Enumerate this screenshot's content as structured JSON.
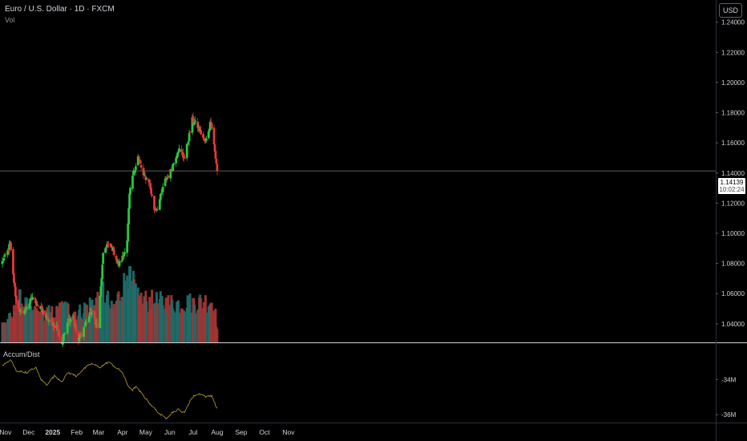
{
  "header": {
    "title": "Euro / U.S. Dollar · 1D · FXCM",
    "volume_label": "Vol"
  },
  "indicator": {
    "label": "Accum/Dist"
  },
  "currency_button": {
    "label": "USD"
  },
  "last_price": {
    "value": "1.14139",
    "countdown": "10:02:24"
  },
  "colors": {
    "up": "#26c940",
    "down": "#e23a3a",
    "vol_up": "#1f6b68",
    "vol_down": "#a23535",
    "ad_line": "#b9a22c",
    "grid_line": "#7a7d85"
  },
  "chart_data": [
    {
      "type": "candlestick",
      "title": "Euro / U.S. Dollar · 1D · FXCM",
      "x_ticks": [
        "Nov",
        "Dec",
        "2025",
        "Feb",
        "Mar",
        "Apr",
        "May",
        "Jun",
        "Jul",
        "Aug",
        "Sep",
        "Oct",
        "Nov"
      ],
      "y_ticks": [
        "1.24000",
        "1.22000",
        "1.20000",
        "1.18000",
        "1.16000",
        "1.14000",
        "1.12000",
        "1.10000",
        "1.08000",
        "1.06000",
        "1.04000"
      ],
      "y_tick_values": [
        1.24,
        1.22,
        1.2,
        1.18,
        1.16,
        1.14,
        1.12,
        1.1,
        1.08,
        1.06,
        1.04
      ],
      "ylim": [
        1.0277,
        1.2547
      ],
      "anchors": [
        [
          "2024-10-28",
          1.081
        ],
        [
          "2024-11-04",
          1.088
        ],
        [
          "2024-11-07",
          1.093
        ],
        [
          "2024-11-11",
          1.072
        ],
        [
          "2024-11-15",
          1.055
        ],
        [
          "2024-11-22",
          1.046
        ],
        [
          "2024-12-02",
          1.054
        ],
        [
          "2024-12-06",
          1.058
        ],
        [
          "2024-12-16",
          1.05
        ],
        [
          "2024-12-27",
          1.042
        ],
        [
          "2025-01-06",
          1.038
        ],
        [
          "2025-01-13",
          1.027
        ],
        [
          "2025-01-20",
          1.042
        ],
        [
          "2025-01-27",
          1.045
        ],
        [
          "2025-02-03",
          1.028
        ],
        [
          "2025-02-12",
          1.04
        ],
        [
          "2025-02-20",
          1.048
        ],
        [
          "2025-02-28",
          1.038
        ],
        [
          "2025-03-04",
          1.064
        ],
        [
          "2025-03-07",
          1.085
        ],
        [
          "2025-03-11",
          1.092
        ],
        [
          "2025-03-19",
          1.09
        ],
        [
          "2025-03-27",
          1.079
        ],
        [
          "2025-04-02",
          1.085
        ],
        [
          "2025-04-07",
          1.096
        ],
        [
          "2025-04-10",
          1.125
        ],
        [
          "2025-04-14",
          1.138
        ],
        [
          "2025-04-21",
          1.151
        ],
        [
          "2025-04-28",
          1.138
        ],
        [
          "2025-05-05",
          1.135
        ],
        [
          "2025-05-12",
          1.116
        ],
        [
          "2025-05-16",
          1.117
        ],
        [
          "2025-05-26",
          1.135
        ],
        [
          "2025-06-02",
          1.141
        ],
        [
          "2025-06-12",
          1.156
        ],
        [
          "2025-06-20",
          1.15
        ],
        [
          "2025-06-30",
          1.175
        ],
        [
          "2025-07-07",
          1.171
        ],
        [
          "2025-07-17",
          1.16
        ],
        [
          "2025-07-24",
          1.175
        ],
        [
          "2025-07-28",
          1.159
        ],
        [
          "2025-08-01",
          1.141
        ]
      ],
      "last_value": 1.14139
    },
    {
      "type": "bar",
      "name": "Vol",
      "anchors": [
        [
          "2024-10-28",
          0.25
        ],
        [
          "2024-11-11",
          0.35
        ],
        [
          "2024-11-15",
          0.6
        ],
        [
          "2024-11-22",
          0.55
        ],
        [
          "2024-12-06",
          0.4
        ],
        [
          "2025-01-06",
          0.4
        ],
        [
          "2025-01-13",
          0.48
        ],
        [
          "2025-02-03",
          0.4
        ],
        [
          "2025-03-04",
          0.62
        ],
        [
          "2025-03-07",
          0.7
        ],
        [
          "2025-03-19",
          0.42
        ],
        [
          "2025-04-03",
          0.78
        ],
        [
          "2025-04-07",
          1.0
        ],
        [
          "2025-04-11",
          0.88
        ],
        [
          "2025-04-21",
          0.58
        ],
        [
          "2025-05-12",
          0.55
        ],
        [
          "2025-06-12",
          0.52
        ],
        [
          "2025-07-28",
          0.56
        ],
        [
          "2025-08-01",
          0.18
        ]
      ]
    },
    {
      "type": "line",
      "name": "Accum/Dist",
      "y_ticks": [
        "-34M",
        "-36M"
      ],
      "y_tick_values": [
        -34,
        -36
      ],
      "ylim": [
        -36.45,
        -31.93
      ],
      "anchors": [
        [
          "2024-10-28",
          -33.2
        ],
        [
          "2024-11-04",
          -33.0
        ],
        [
          "2024-11-08",
          -32.9
        ],
        [
          "2024-11-15",
          -33.5
        ],
        [
          "2024-11-29",
          -33.6
        ],
        [
          "2024-12-10",
          -33.3
        ],
        [
          "2024-12-17",
          -34.0
        ],
        [
          "2024-12-24",
          -34.3
        ],
        [
          "2025-01-03",
          -33.8
        ],
        [
          "2025-01-13",
          -34.1
        ],
        [
          "2025-01-21",
          -33.6
        ],
        [
          "2025-01-31",
          -33.8
        ],
        [
          "2025-02-10",
          -33.4
        ],
        [
          "2025-02-20",
          -33.1
        ],
        [
          "2025-03-03",
          -33.3
        ],
        [
          "2025-03-14",
          -33.0
        ],
        [
          "2025-03-26",
          -33.4
        ],
        [
          "2025-04-01",
          -33.6
        ],
        [
          "2025-04-07",
          -34.3
        ],
        [
          "2025-04-14",
          -34.6
        ],
        [
          "2025-04-18",
          -34.4
        ],
        [
          "2025-05-05",
          -35.3
        ],
        [
          "2025-05-13",
          -35.7
        ],
        [
          "2025-05-20",
          -36.0
        ],
        [
          "2025-05-27",
          -36.2
        ],
        [
          "2025-06-03",
          -35.9
        ],
        [
          "2025-06-12",
          -35.7
        ],
        [
          "2025-06-20",
          -35.9
        ],
        [
          "2025-06-27",
          -35.2
        ],
        [
          "2025-07-03",
          -34.9
        ],
        [
          "2025-07-11",
          -34.8
        ],
        [
          "2025-07-18",
          -35.0
        ],
        [
          "2025-07-25",
          -34.9
        ],
        [
          "2025-08-01",
          -35.7
        ]
      ]
    }
  ]
}
